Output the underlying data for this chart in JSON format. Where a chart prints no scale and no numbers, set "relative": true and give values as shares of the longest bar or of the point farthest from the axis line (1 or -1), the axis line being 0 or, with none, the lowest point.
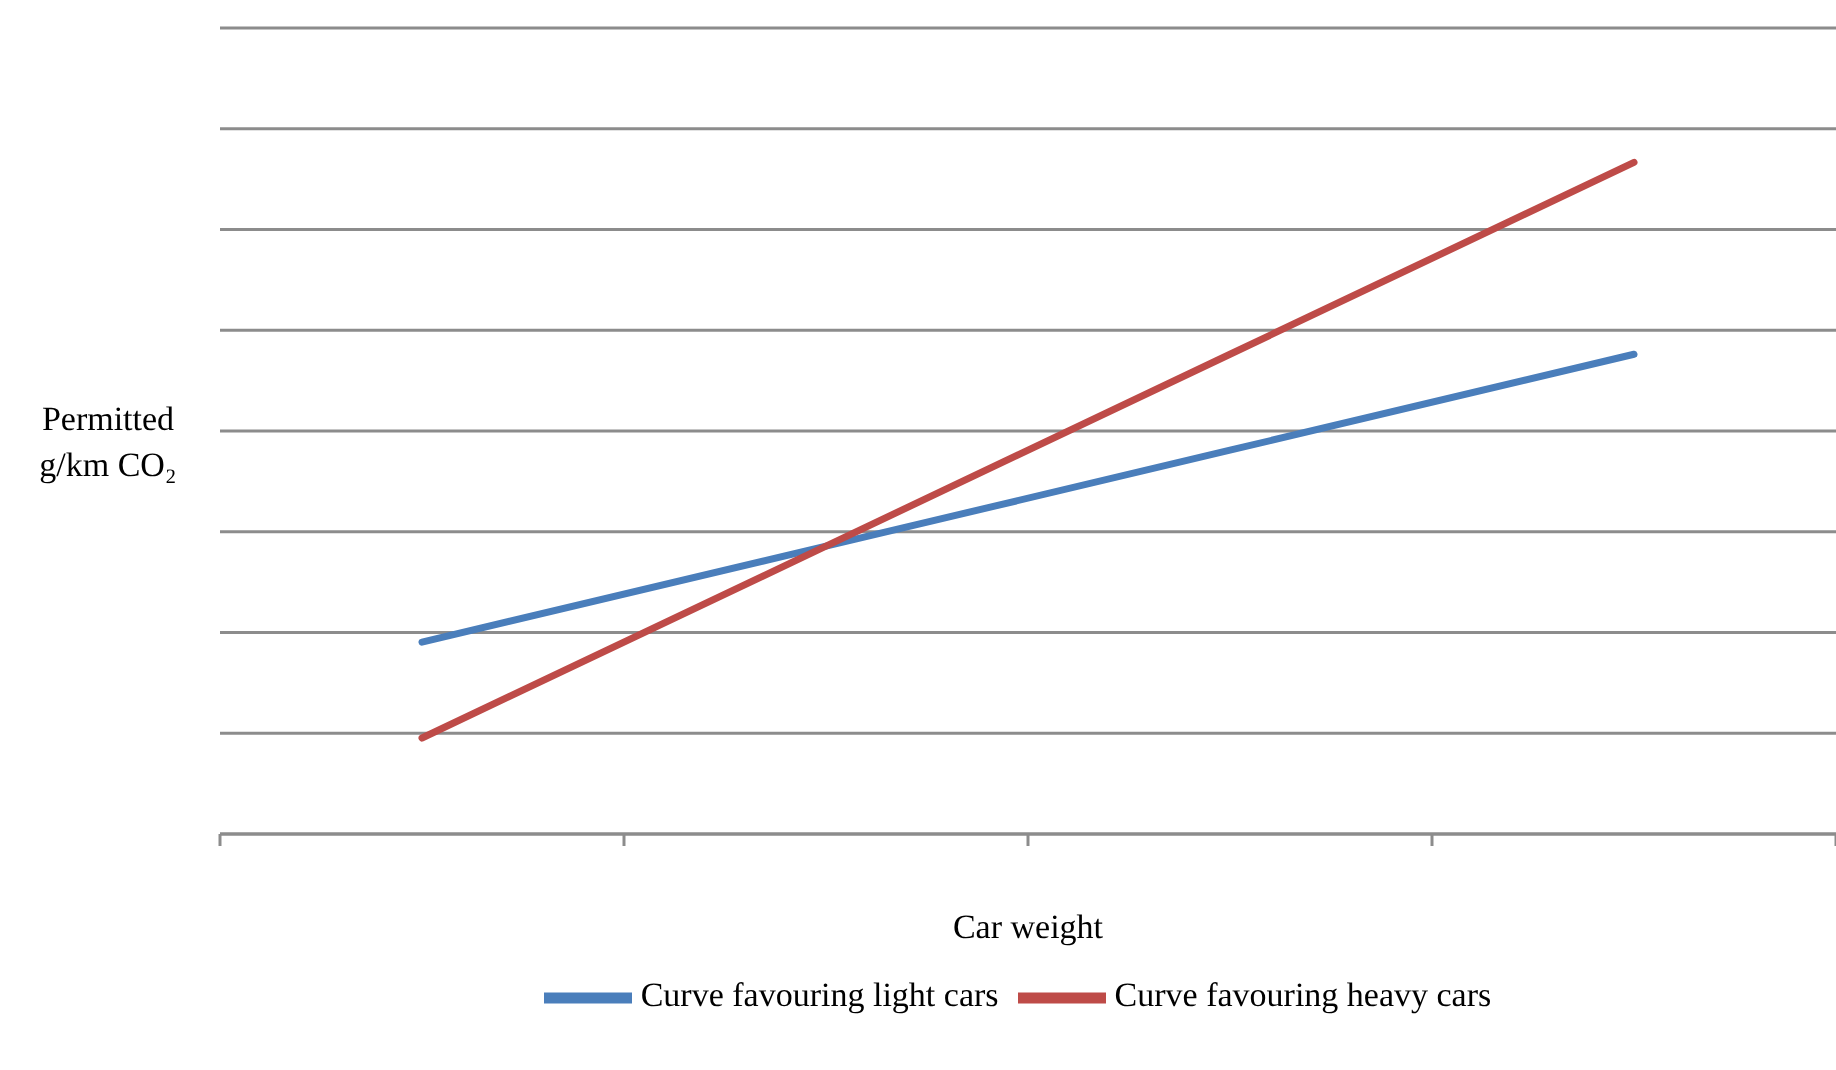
{
  "chart_data": {
    "type": "line",
    "xlabel": "Car weight",
    "ylabel": "Permitted g/km CO₂",
    "relative": true,
    "categories": [
      null,
      null,
      null,
      null
    ],
    "series": [
      {
        "name": "Curve favouring light cars",
        "color": "#4a7ebb",
        "values": [
          0.2857,
          0.4286,
          0.5714,
          0.7143
        ]
      },
      {
        "name": "Curve favouring heavy cars",
        "color": "#be4b48",
        "values": [
          0.1429,
          0.4286,
          0.7143,
          1
        ]
      }
    ],
    "grid": "y",
    "legend": "bottom",
    "marker": "none",
    "line_style": "solid"
  }
}
